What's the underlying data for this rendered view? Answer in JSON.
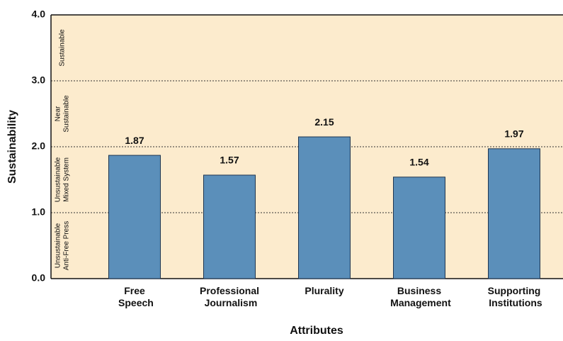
{
  "chart_data": {
    "type": "bar",
    "x_label": "Attributes",
    "y_label": "Sustainability",
    "categories": [
      "Free Speech",
      "Professional Journalism",
      "Plurality",
      "Business Management",
      "Supporting Institutions"
    ],
    "values": [
      1.87,
      1.57,
      2.15,
      1.54,
      1.97
    ],
    "color": "#5b8fba",
    "edge_color": "#1f3550",
    "background": "#fcebcd",
    "ylim": [
      0,
      4
    ],
    "yticks": [
      {
        "value": 0,
        "label": "0.0"
      },
      {
        "value": 1,
        "label": "1.0"
      },
      {
        "value": 2,
        "label": "2.0"
      },
      {
        "value": 3,
        "label": "3.0"
      },
      {
        "value": 4,
        "label": "4.0"
      }
    ],
    "grid": true,
    "zones": [
      [
        "Unsustainable",
        "Anti-Free Press"
      ],
      [
        "Unsustainable",
        "Mixed System"
      ],
      [
        "Near",
        "Sustainable"
      ],
      [
        "Sustainable"
      ]
    ]
  }
}
